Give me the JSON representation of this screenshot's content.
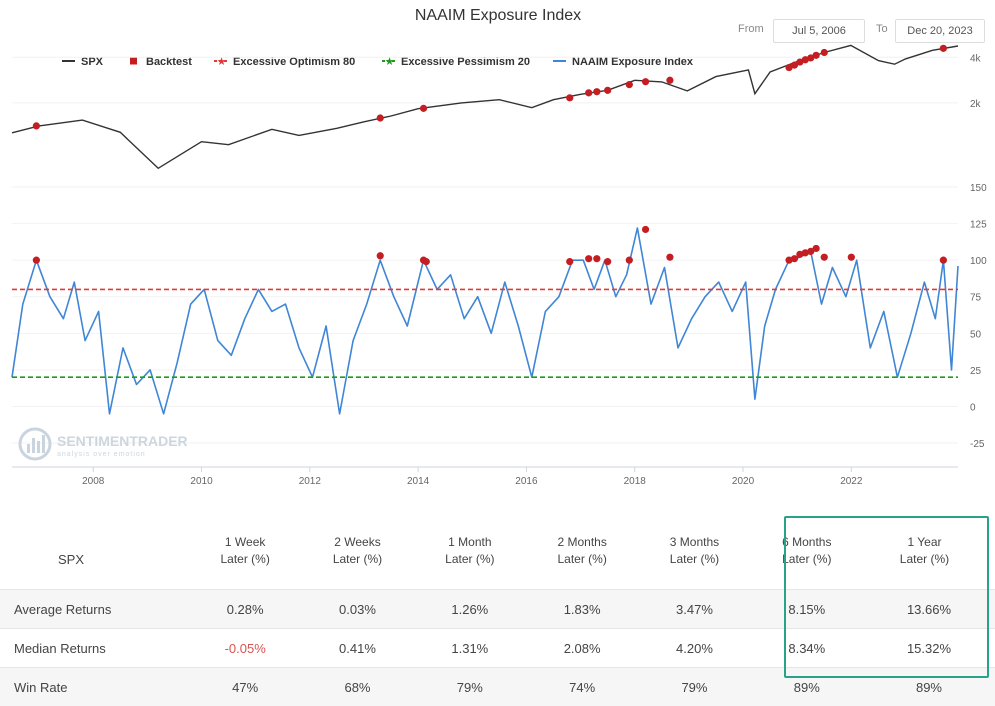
{
  "title": "NAAIM Exposure Index",
  "range": {
    "from_label": "From",
    "from_value": "Jul 5, 2006",
    "to_label": "To",
    "to_value": "Dec 20, 2023"
  },
  "legend": [
    {
      "label": "SPX",
      "color": "#333333",
      "marker": "line"
    },
    {
      "label": "Backtest",
      "color": "#c41e23",
      "marker": "square"
    },
    {
      "label": "Excessive Optimism 80",
      "color": "#e03a3a",
      "marker": "dashed-star"
    },
    {
      "label": "Excessive Pessimism 20",
      "color": "#1f9a1f",
      "marker": "dashed-star"
    },
    {
      "label": "NAAIM Exposure Index",
      "color": "#3f86d6",
      "marker": "line"
    }
  ],
  "watermark": {
    "name": "SENTIMENTRADER",
    "tagline": "analysis over emotion"
  },
  "chart_data": [
    {
      "type": "line",
      "series_name": "SPX",
      "y_scale": "log",
      "y_ticks": [
        "4k",
        "2k"
      ],
      "x": [
        2006.5,
        2007.0,
        2007.8,
        2008.5,
        2009.2,
        2010.0,
        2010.5,
        2011.3,
        2011.8,
        2012.5,
        2013.0,
        2013.5,
        2014.0,
        2014.8,
        2015.5,
        2016.1,
        2016.5,
        2017.0,
        2017.5,
        2018.0,
        2018.5,
        2018.97,
        2019.5,
        2020.1,
        2020.22,
        2020.5,
        2021.0,
        2021.5,
        2021.99,
        2022.5,
        2022.8,
        2023.0,
        2023.5,
        2023.97
      ],
      "values": [
        1270,
        1410,
        1540,
        1280,
        740,
        1110,
        1060,
        1340,
        1220,
        1360,
        1500,
        1640,
        1830,
        2000,
        2100,
        1860,
        2100,
        2280,
        2420,
        2820,
        2750,
        2400,
        2980,
        3300,
        2300,
        3200,
        3750,
        4300,
        4790,
        3800,
        3600,
        3900,
        4450,
        4750
      ],
      "backtest_points": [
        {
          "x": 2006.95,
          "y": 1410
        },
        {
          "x": 2013.3,
          "y": 1590
        },
        {
          "x": 2014.1,
          "y": 1840
        },
        {
          "x": 2016.8,
          "y": 2160
        },
        {
          "x": 2017.15,
          "y": 2330
        },
        {
          "x": 2017.3,
          "y": 2370
        },
        {
          "x": 2017.5,
          "y": 2420
        },
        {
          "x": 2017.9,
          "y": 2640
        },
        {
          "x": 2018.2,
          "y": 2760
        },
        {
          "x": 2018.65,
          "y": 2820
        },
        {
          "x": 2020.85,
          "y": 3420
        },
        {
          "x": 2020.95,
          "y": 3550
        },
        {
          "x": 2021.05,
          "y": 3720
        },
        {
          "x": 2021.15,
          "y": 3850
        },
        {
          "x": 2021.25,
          "y": 3960
        },
        {
          "x": 2021.35,
          "y": 4120
        },
        {
          "x": 2021.5,
          "y": 4300
        },
        {
          "x": 2023.7,
          "y": 4580
        }
      ]
    },
    {
      "type": "line",
      "series_name": "NAAIM Exposure Index",
      "xlim": [
        2006.5,
        2023.97
      ],
      "ylim": [
        -40,
        150
      ],
      "y_ticks": [
        150,
        125,
        100,
        75,
        50,
        25,
        0,
        -25
      ],
      "x_ticks": [
        2008,
        2010,
        2012,
        2014,
        2016,
        2018,
        2020,
        2022
      ],
      "thresholds": [
        {
          "label": "Excessive Optimism 80",
          "value": 80
        },
        {
          "label": "Excessive Pessimism 20",
          "value": 20
        }
      ],
      "x": [
        2006.5,
        2006.7,
        2006.95,
        2007.2,
        2007.45,
        2007.65,
        2007.85,
        2008.1,
        2008.3,
        2008.55,
        2008.8,
        2009.05,
        2009.3,
        2009.55,
        2009.8,
        2010.05,
        2010.3,
        2010.55,
        2010.8,
        2011.05,
        2011.3,
        2011.55,
        2011.8,
        2012.05,
        2012.3,
        2012.55,
        2012.8,
        2013.05,
        2013.3,
        2013.55,
        2013.8,
        2014.1,
        2014.35,
        2014.6,
        2014.85,
        2015.1,
        2015.35,
        2015.6,
        2015.85,
        2016.1,
        2016.35,
        2016.6,
        2016.85,
        2017.05,
        2017.25,
        2017.45,
        2017.65,
        2017.85,
        2018.05,
        2018.3,
        2018.55,
        2018.8,
        2019.05,
        2019.3,
        2019.55,
        2019.8,
        2020.05,
        2020.22,
        2020.4,
        2020.6,
        2020.85,
        2021.05,
        2021.25,
        2021.45,
        2021.65,
        2021.9,
        2022.1,
        2022.35,
        2022.6,
        2022.85,
        2023.1,
        2023.35,
        2023.55,
        2023.7,
        2023.85,
        2023.97
      ],
      "values": [
        20,
        70,
        100,
        75,
        60,
        85,
        45,
        65,
        -5,
        40,
        15,
        25,
        -5,
        30,
        70,
        80,
        45,
        35,
        60,
        80,
        65,
        70,
        40,
        20,
        55,
        -5,
        45,
        70,
        100,
        75,
        55,
        100,
        80,
        90,
        60,
        75,
        50,
        85,
        55,
        20,
        65,
        75,
        100,
        100,
        80,
        100,
        75,
        90,
        122,
        70,
        95,
        40,
        60,
        75,
        85,
        65,
        85,
        5,
        55,
        80,
        100,
        102,
        106,
        70,
        95,
        75,
        100,
        40,
        65,
        20,
        50,
        85,
        60,
        100,
        25,
        96
      ],
      "backtest_points": [
        {
          "x": 2006.95,
          "y": 100
        },
        {
          "x": 2013.3,
          "y": 103
        },
        {
          "x": 2014.1,
          "y": 100
        },
        {
          "x": 2014.15,
          "y": 99
        },
        {
          "x": 2016.8,
          "y": 99
        },
        {
          "x": 2017.15,
          "y": 101
        },
        {
          "x": 2017.3,
          "y": 101
        },
        {
          "x": 2017.5,
          "y": 99
        },
        {
          "x": 2017.9,
          "y": 100
        },
        {
          "x": 2018.2,
          "y": 121
        },
        {
          "x": 2018.65,
          "y": 102
        },
        {
          "x": 2020.85,
          "y": 100
        },
        {
          "x": 2020.95,
          "y": 101
        },
        {
          "x": 2021.05,
          "y": 104
        },
        {
          "x": 2021.15,
          "y": 105
        },
        {
          "x": 2021.25,
          "y": 106
        },
        {
          "x": 2021.35,
          "y": 108
        },
        {
          "x": 2021.5,
          "y": 102
        },
        {
          "x": 2022.0,
          "y": 102
        },
        {
          "x": 2023.7,
          "y": 100
        }
      ]
    },
    {
      "type": "table",
      "row_header": "SPX",
      "columns": [
        "1 Week\nLater (%)",
        "2 Weeks\nLater (%)",
        "1 Month\nLater (%)",
        "2 Months\nLater (%)",
        "3 Months\nLater (%)",
        "6 Months\nLater (%)",
        "1 Year\nLater (%)"
      ],
      "rows": [
        {
          "label": "Average Returns",
          "values": [
            "0.28%",
            "0.03%",
            "1.26%",
            "1.83%",
            "3.47%",
            "8.15%",
            "13.66%"
          ]
        },
        {
          "label": "Median Returns",
          "values": [
            "-0.05%",
            "0.41%",
            "1.31%",
            "2.08%",
            "4.20%",
            "8.34%",
            "15.32%"
          ]
        },
        {
          "label": "Win Rate",
          "values": [
            "47%",
            "68%",
            "79%",
            "74%",
            "79%",
            "89%",
            "89%"
          ]
        }
      ],
      "highlighted_columns": [
        "6 Months\nLater (%)",
        "1 Year\nLater (%)"
      ],
      "highlight_color": "#2aa287",
      "negative_color": "#d9534f"
    }
  ]
}
